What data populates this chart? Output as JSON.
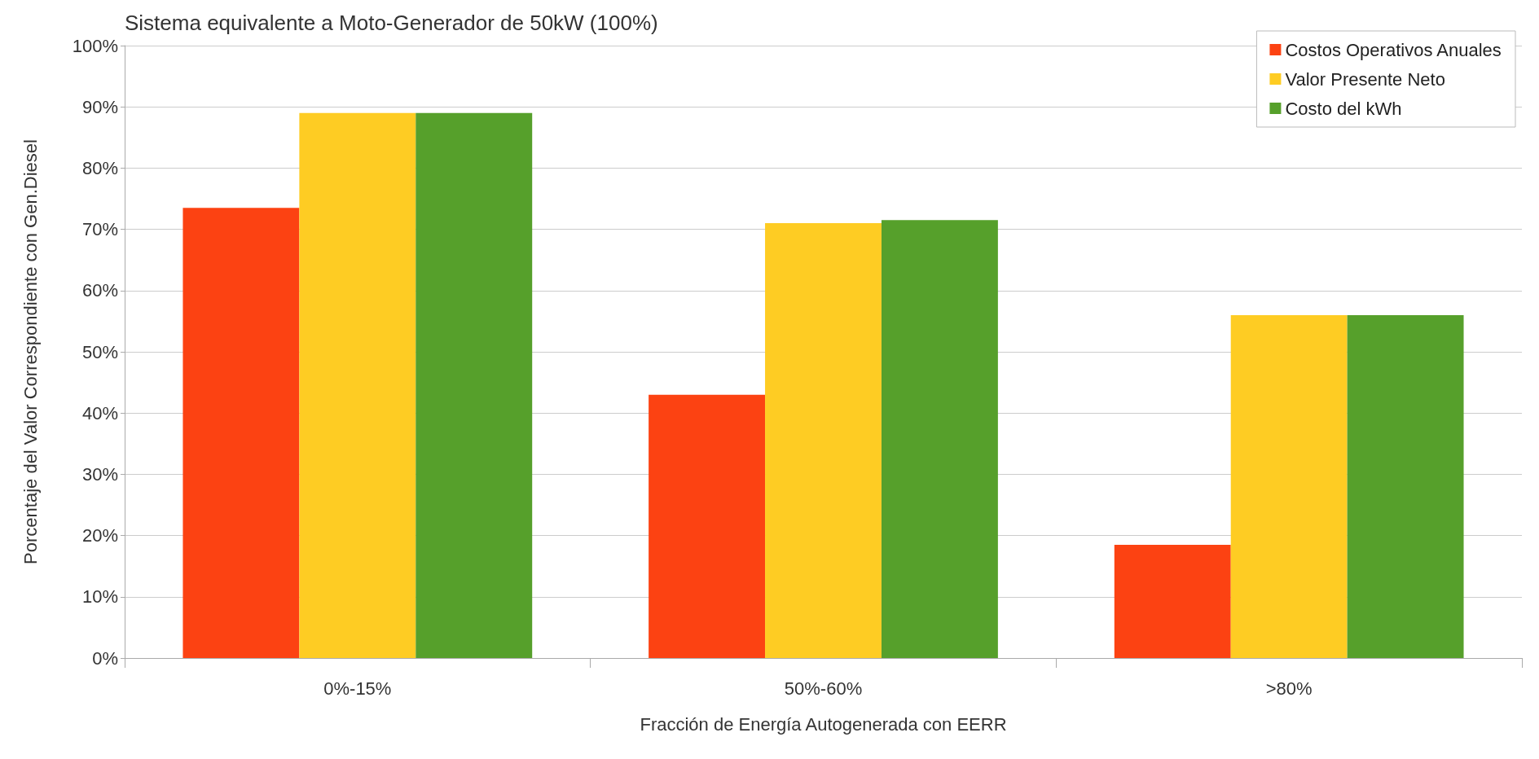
{
  "chart_data": {
    "type": "bar",
    "title": "Sistema equivalente a Moto-Generador de 50kW (100%)",
    "xlabel": "Fracción de Energía Autogenerada con EERR",
    "ylabel": "Porcentaje del Valor Correspondiente con Gen.Diesel",
    "categories": [
      "0%-15%",
      "50%-60%",
      ">80%"
    ],
    "series": [
      {
        "name": "Costos Operativos Anuales",
        "color": "#fc4212",
        "values": [
          73.5,
          43,
          18.5
        ]
      },
      {
        "name": "Valor Presente Neto",
        "color": "#fecc23",
        "values": [
          89,
          71,
          56
        ]
      },
      {
        "name": "Costo del kWh",
        "color": "#56a02b",
        "values": [
          89,
          71.5,
          56
        ]
      }
    ],
    "ylim": [
      0,
      100
    ],
    "yticks": [
      {
        "value": 0,
        "label": "0%"
      },
      {
        "value": 10,
        "label": "10%"
      },
      {
        "value": 20,
        "label": "20%"
      },
      {
        "value": 30,
        "label": "30%"
      },
      {
        "value": 40,
        "label": "40%"
      },
      {
        "value": 50,
        "label": "50%"
      },
      {
        "value": 60,
        "label": "60%"
      },
      {
        "value": 70,
        "label": "70%"
      },
      {
        "value": 80,
        "label": "80%"
      },
      {
        "value": 90,
        "label": "90%"
      },
      {
        "value": 100,
        "label": "100%"
      }
    ],
    "grid": "y",
    "legend": "top right"
  }
}
